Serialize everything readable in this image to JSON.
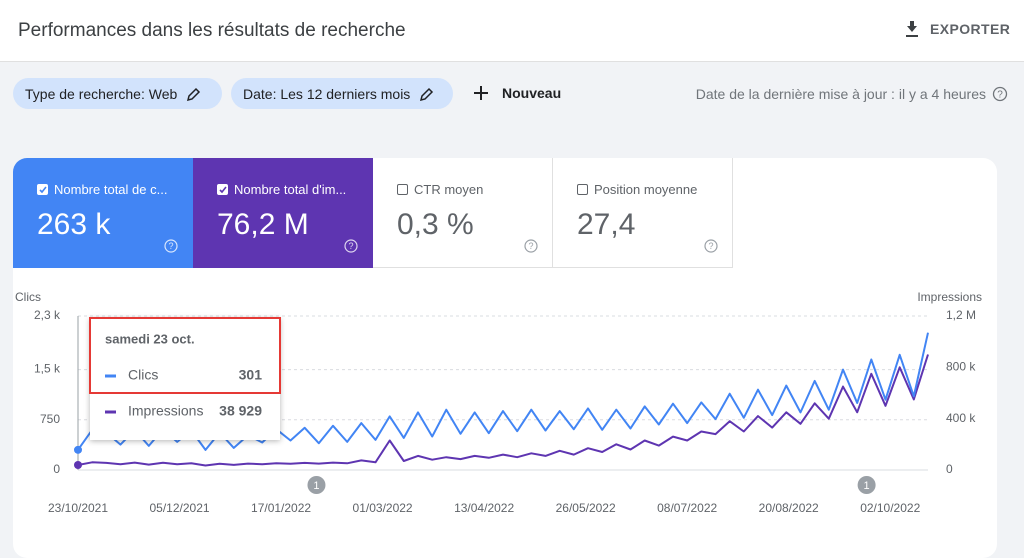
{
  "header": {
    "title": "Performances dans les résultats de recherche",
    "export": "EXPORTER"
  },
  "filters": {
    "items": [
      "Type de recherche: Web",
      "Date: Les 12 derniers mois"
    ],
    "new": "Nouveau",
    "last_update": "Date de la dernière mise à jour : il y a 4 heures"
  },
  "metrics": [
    {
      "label": "Nombre total de c...",
      "value": "263 k",
      "selected": true,
      "color": "#4285f4"
    },
    {
      "label": "Nombre total d'im...",
      "value": "76,2 M",
      "selected": true,
      "color": "#5e35b1"
    },
    {
      "label": "CTR moyen",
      "value": "0,3 %",
      "selected": false,
      "color": "#ffffff"
    },
    {
      "label": "Position moyenne",
      "value": "27,4",
      "selected": false,
      "color": "#ffffff"
    }
  ],
  "chart_data": {
    "type": "line",
    "y_label": "Clics",
    "y2_label": "Impressions",
    "x": [
      "23/10/2021",
      "29/10/2021",
      "04/11/2021",
      "10/11/2021",
      "16/11/2021",
      "22/11/2021",
      "28/11/2021",
      "04/12/2021",
      "10/12/2021",
      "16/12/2021",
      "22/12/2021",
      "28/12/2021",
      "03/01/2022",
      "09/01/2022",
      "15/01/2022",
      "21/01/2022",
      "27/01/2022",
      "02/02/2022",
      "08/02/2022",
      "14/02/2022",
      "20/02/2022",
      "26/02/2022",
      "04/03/2022",
      "10/03/2022",
      "16/03/2022",
      "22/03/2022",
      "28/03/2022",
      "03/04/2022",
      "09/04/2022",
      "15/04/2022",
      "21/04/2022",
      "27/04/2022",
      "03/05/2022",
      "09/05/2022",
      "15/05/2022",
      "21/05/2022",
      "27/05/2022",
      "02/06/2022",
      "08/06/2022",
      "14/06/2022",
      "20/06/2022",
      "26/06/2022",
      "02/07/2022",
      "08/07/2022",
      "14/07/2022",
      "20/07/2022",
      "26/07/2022",
      "01/08/2022",
      "07/08/2022",
      "13/08/2022",
      "19/08/2022",
      "25/08/2022",
      "31/08/2022",
      "06/09/2022",
      "12/09/2022",
      "18/09/2022",
      "24/09/2022",
      "30/09/2022",
      "06/10/2022",
      "12/10/2022",
      "18/10/2022"
    ],
    "xlim": [
      "23/10/2021",
      "18/10/2022"
    ],
    "xticks": [
      "23/10/2021",
      "05/12/2021",
      "17/01/2022",
      "01/03/2022",
      "13/04/2022",
      "26/05/2022",
      "08/07/2022",
      "20/08/2022",
      "02/10/2022"
    ],
    "ylim": [
      0,
      2300
    ],
    "yticks": [
      0,
      750,
      {
        "value": 1500,
        "label": "1,5 k"
      },
      {
        "value": 2300,
        "label": "2,3 k"
      }
    ],
    "y2lim": [
      0,
      1200000
    ],
    "y2ticks": [
      0,
      {
        "value": 400000,
        "label": "400 k"
      },
      {
        "value": 800000,
        "label": "800 k"
      },
      {
        "value": 1200000,
        "label": "1,2 M"
      }
    ],
    "grid": true,
    "series": [
      {
        "name": "Clics",
        "color": "#4285f4",
        "values": [
          301,
          600,
          560,
          380,
          600,
          360,
          610,
          420,
          590,
          300,
          560,
          330,
          520,
          410,
          610,
          440,
          630,
          400,
          660,
          420,
          700,
          450,
          800,
          480,
          860,
          500,
          900,
          540,
          860,
          550,
          880,
          580,
          900,
          590,
          880,
          610,
          920,
          600,
          900,
          620,
          950,
          680,
          990,
          700,
          1010,
          760,
          1140,
          780,
          1200,
          820,
          1260,
          860,
          1330,
          900,
          1500,
          1000,
          1650,
          1050,
          1720,
          1100,
          2050
        ]
      },
      {
        "name": "Impressions",
        "color": "#5e35b1",
        "axis": "y2",
        "values": [
          38929,
          60000,
          55000,
          45000,
          58000,
          42000,
          56000,
          45000,
          52000,
          35000,
          48000,
          40000,
          50000,
          45000,
          52000,
          48000,
          55000,
          50000,
          58000,
          52000,
          75000,
          60000,
          230000,
          70000,
          110000,
          80000,
          100000,
          85000,
          110000,
          95000,
          120000,
          100000,
          130000,
          110000,
          150000,
          120000,
          170000,
          140000,
          200000,
          160000,
          230000,
          190000,
          260000,
          230000,
          300000,
          280000,
          380000,
          300000,
          420000,
          330000,
          450000,
          360000,
          520000,
          400000,
          650000,
          450000,
          750000,
          500000,
          800000,
          550000,
          900000
        ]
      }
    ],
    "tooltip": {
      "title": "samedi 23 oct.",
      "value_labels": [
        "301",
        "38 929"
      ]
    },
    "annotations": [
      {
        "x": "01/02/2022",
        "label": "1"
      },
      {
        "x": "22/09/2022",
        "label": "1"
      }
    ]
  }
}
